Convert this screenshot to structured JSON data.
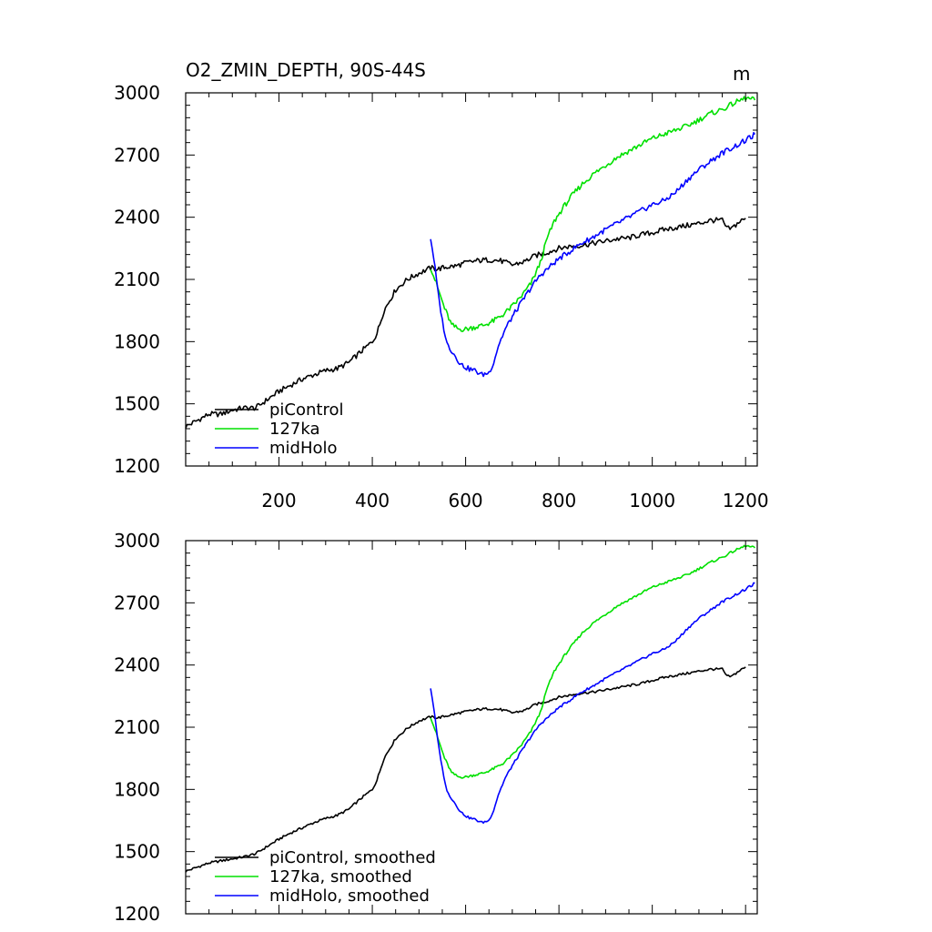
{
  "figure": {
    "title": "O2_ZMIN_DEPTH, 90S-44S",
    "units": "m"
  },
  "chart_data": [
    {
      "type": "line",
      "xlim": [
        0,
        1225
      ],
      "ylim": [
        1200,
        3000
      ],
      "yticks": [
        1200,
        1500,
        1800,
        2100,
        2400,
        2700,
        3000
      ],
      "xticks": [
        200,
        400,
        600,
        800,
        1000,
        1200
      ],
      "series": [
        {
          "name": "piControl",
          "color": "#000000",
          "x": [
            0,
            25,
            50,
            75,
            100,
            125,
            150,
            175,
            200,
            225,
            250,
            275,
            300,
            325,
            350,
            375,
            400,
            410,
            425,
            450,
            475,
            500,
            525,
            540,
            560,
            580,
            600,
            625,
            650,
            675,
            700,
            725,
            750,
            775,
            800,
            825,
            850,
            875,
            900,
            925,
            950,
            975,
            1000,
            1025,
            1050,
            1075,
            1100,
            1125,
            1150,
            1160,
            1170,
            1185,
            1200
          ],
          "y": [
            1390,
            1420,
            1450,
            1450,
            1470,
            1480,
            1480,
            1520,
            1560,
            1590,
            1620,
            1640,
            1660,
            1670,
            1700,
            1750,
            1800,
            1840,
            1950,
            2050,
            2100,
            2130,
            2155,
            2150,
            2160,
            2165,
            2180,
            2190,
            2195,
            2190,
            2170,
            2185,
            2215,
            2230,
            2250,
            2260,
            2265,
            2275,
            2285,
            2295,
            2300,
            2315,
            2325,
            2340,
            2350,
            2360,
            2370,
            2385,
            2385,
            2345,
            2345,
            2375,
            2395
          ]
        },
        {
          "name": "127ka",
          "color": "#00e000",
          "x": [
            525,
            540,
            555,
            570,
            585,
            600,
            620,
            640,
            660,
            680,
            700,
            720,
            740,
            760,
            775,
            790,
            810,
            830,
            850,
            875,
            900,
            925,
            950,
            975,
            1000,
            1025,
            1050,
            1075,
            1100,
            1125,
            1150,
            1175,
            1200,
            1220
          ],
          "y": [
            2160,
            2060,
            1960,
            1880,
            1860,
            1860,
            1870,
            1880,
            1900,
            1930,
            1970,
            2020,
            2080,
            2180,
            2300,
            2380,
            2450,
            2510,
            2560,
            2610,
            2650,
            2690,
            2720,
            2750,
            2780,
            2800,
            2820,
            2840,
            2870,
            2900,
            2920,
            2950,
            2975,
            2965
          ]
        },
        {
          "name": "midHolo",
          "color": "#0000ff",
          "x": [
            525,
            532,
            540,
            550,
            560,
            575,
            590,
            605,
            620,
            635,
            650,
            660,
            670,
            685,
            700,
            720,
            740,
            760,
            780,
            800,
            820,
            845,
            870,
            900,
            925,
            950,
            975,
            1000,
            1025,
            1050,
            1075,
            1100,
            1125,
            1150,
            1175,
            1200,
            1220
          ],
          "y": [
            2300,
            2200,
            2050,
            1900,
            1790,
            1740,
            1690,
            1670,
            1660,
            1640,
            1650,
            1700,
            1780,
            1860,
            1920,
            1990,
            2060,
            2120,
            2160,
            2200,
            2230,
            2270,
            2300,
            2340,
            2370,
            2400,
            2430,
            2460,
            2480,
            2520,
            2580,
            2630,
            2670,
            2710,
            2740,
            2770,
            2800
          ]
        }
      ],
      "legend": {
        "placement": "bottom-left",
        "entries": [
          "piControl",
          "127ka",
          "midHolo"
        ]
      }
    },
    {
      "type": "line",
      "xlim": [
        0,
        1225
      ],
      "ylim": [
        1200,
        3000
      ],
      "yticks": [
        1200,
        1500,
        1800,
        2100,
        2400,
        2700,
        3000
      ],
      "xticks": [],
      "series": [
        {
          "name": "piControl, smoothed",
          "color": "#000000",
          "x": [
            0,
            25,
            50,
            75,
            100,
            125,
            150,
            175,
            200,
            225,
            250,
            275,
            300,
            325,
            350,
            375,
            400,
            410,
            425,
            450,
            475,
            500,
            525,
            540,
            560,
            580,
            600,
            625,
            650,
            675,
            700,
            725,
            750,
            775,
            800,
            825,
            850,
            875,
            900,
            925,
            950,
            975,
            1000,
            1025,
            1050,
            1075,
            1100,
            1125,
            1150,
            1160,
            1170,
            1185,
            1200
          ],
          "y": [
            1405,
            1425,
            1445,
            1455,
            1465,
            1475,
            1490,
            1525,
            1560,
            1590,
            1615,
            1640,
            1660,
            1675,
            1705,
            1755,
            1800,
            1845,
            1950,
            2045,
            2095,
            2130,
            2150,
            2145,
            2155,
            2165,
            2175,
            2185,
            2190,
            2185,
            2170,
            2180,
            2210,
            2225,
            2245,
            2255,
            2265,
            2270,
            2280,
            2290,
            2300,
            2310,
            2325,
            2340,
            2350,
            2360,
            2370,
            2380,
            2380,
            2345,
            2345,
            2370,
            2390
          ]
        },
        {
          "name": "127ka, smoothed",
          "color": "#00e000",
          "x": [
            525,
            540,
            555,
            570,
            585,
            600,
            620,
            640,
            660,
            680,
            700,
            720,
            740,
            760,
            775,
            790,
            810,
            830,
            850,
            875,
            900,
            925,
            950,
            975,
            1000,
            1025,
            1050,
            1075,
            1100,
            1125,
            1150,
            1175,
            1200,
            1220
          ],
          "y": [
            2150,
            2050,
            1950,
            1880,
            1860,
            1860,
            1870,
            1880,
            1900,
            1925,
            1965,
            2015,
            2080,
            2170,
            2290,
            2370,
            2440,
            2500,
            2555,
            2605,
            2645,
            2685,
            2715,
            2745,
            2775,
            2795,
            2815,
            2835,
            2865,
            2895,
            2920,
            2950,
            2975,
            2965
          ]
        },
        {
          "name": "midHolo, smoothed",
          "color": "#0000ff",
          "x": [
            525,
            532,
            540,
            550,
            560,
            575,
            590,
            605,
            620,
            635,
            650,
            660,
            670,
            685,
            700,
            720,
            740,
            760,
            780,
            800,
            820,
            845,
            870,
            900,
            925,
            950,
            975,
            1000,
            1025,
            1050,
            1075,
            1100,
            1125,
            1150,
            1175,
            1200,
            1220
          ],
          "y": [
            2290,
            2190,
            2040,
            1900,
            1790,
            1740,
            1690,
            1665,
            1655,
            1640,
            1650,
            1700,
            1775,
            1855,
            1915,
            1985,
            2055,
            2115,
            2155,
            2195,
            2225,
            2265,
            2295,
            2335,
            2365,
            2395,
            2425,
            2455,
            2475,
            2515,
            2575,
            2625,
            2665,
            2705,
            2735,
            2765,
            2795
          ]
        }
      ],
      "legend": {
        "placement": "bottom-left",
        "entries": [
          "piControl, smoothed",
          "127ka, smoothed",
          "midHolo, smoothed"
        ]
      }
    }
  ]
}
